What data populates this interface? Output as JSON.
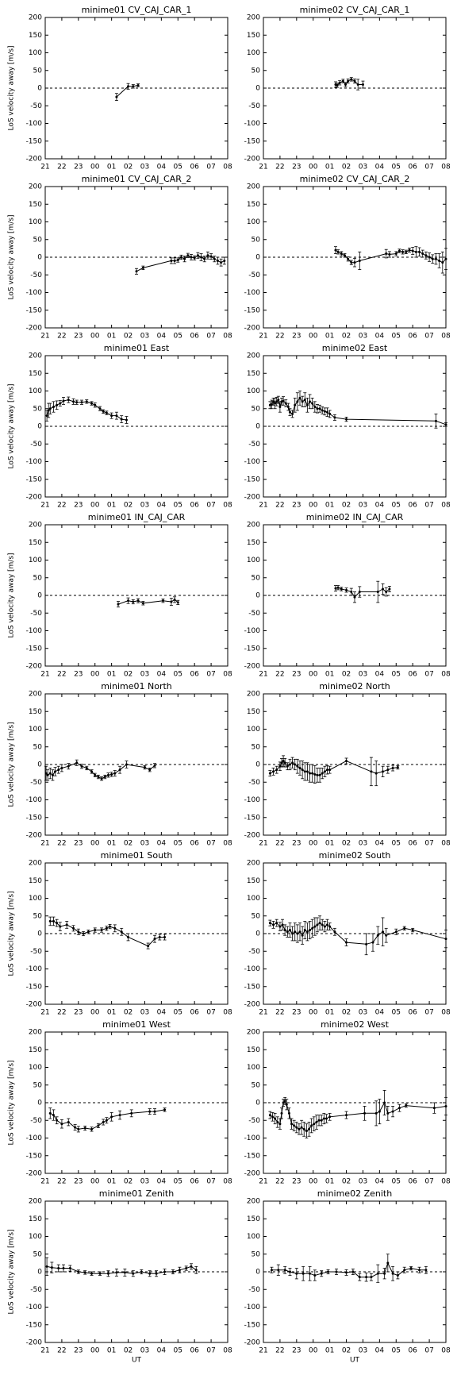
{
  "chart_data": [
    {
      "type": "line",
      "title": "minime01 CV_CAJ_CAR_1",
      "ylabel": "LoS velocity away [m/s]",
      "x": [
        4.3,
        5.0,
        5.3,
        5.6
      ],
      "values": [
        -25,
        5,
        5,
        8
      ],
      "errors": [
        10,
        8,
        5,
        4
      ]
    },
    {
      "type": "line",
      "title": "minime02 CV_CAJ_CAR_1",
      "x": [
        4.35,
        4.45,
        4.6,
        4.8,
        4.95,
        5.1,
        5.3,
        5.5,
        5.7,
        6.0
      ],
      "values": [
        10,
        8,
        15,
        20,
        10,
        20,
        25,
        20,
        10,
        10
      ],
      "errors": [
        8,
        6,
        6,
        5,
        6,
        6,
        5,
        6,
        15,
        10
      ]
    },
    {
      "type": "line",
      "title": "minime01 CV_CAJ_CAR_2",
      "ylabel": "LoS velocity away [m/s]",
      "x": [
        5.5,
        5.9,
        7.6,
        7.8,
        8.0,
        8.2,
        8.4,
        8.6,
        8.8,
        9.0,
        9.2,
        9.4,
        9.6,
        9.8,
        10.0,
        10.2,
        10.4,
        10.6,
        10.8
      ],
      "values": [
        -40,
        -30,
        -10,
        -10,
        -8,
        0,
        -5,
        5,
        0,
        -2,
        5,
        0,
        -5,
        5,
        2,
        -5,
        -10,
        -15,
        -10
      ],
      "errors": [
        8,
        5,
        8,
        8,
        6,
        6,
        8,
        6,
        8,
        6,
        8,
        10,
        8,
        10,
        8,
        8,
        10,
        10,
        10
      ]
    },
    {
      "type": "line",
      "title": "minime02 CV_CAJ_CAR_2",
      "x": [
        4.35,
        4.5,
        4.7,
        4.9,
        5.1,
        5.3,
        5.5,
        5.8,
        7.4,
        7.6,
        8.0,
        8.2,
        8.4,
        8.6,
        8.8,
        9.0,
        9.2,
        9.4,
        9.6,
        9.8,
        10.0,
        10.2,
        10.4,
        10.6,
        10.8,
        11.0
      ],
      "values": [
        20,
        15,
        10,
        5,
        -5,
        -15,
        -15,
        -10,
        10,
        8,
        10,
        18,
        15,
        15,
        20,
        18,
        15,
        15,
        10,
        5,
        0,
        -5,
        -5,
        -10,
        -15,
        -5
      ],
      "errors": [
        10,
        6,
        6,
        5,
        6,
        6,
        12,
        25,
        12,
        8,
        6,
        5,
        6,
        5,
        6,
        10,
        15,
        12,
        10,
        10,
        12,
        12,
        15,
        20,
        30,
        30
      ]
    },
    {
      "type": "line",
      "title": "minime01 East",
      "ylabel": "LoS velocity away [m/s]",
      "x": [
        0.1,
        0.2,
        0.3,
        0.5,
        0.7,
        0.9,
        1.1,
        1.4,
        1.7,
        1.9,
        2.2,
        2.5,
        2.8,
        3.0,
        3.3,
        3.5,
        3.7,
        4.0,
        4.3,
        4.6,
        4.9
      ],
      "values": [
        30,
        45,
        50,
        55,
        60,
        65,
        72,
        75,
        70,
        68,
        68,
        70,
        65,
        60,
        50,
        42,
        38,
        30,
        30,
        20,
        18
      ],
      "errors": [
        15,
        20,
        15,
        15,
        12,
        8,
        10,
        8,
        8,
        6,
        6,
        5,
        5,
        6,
        6,
        5,
        5,
        8,
        10,
        10,
        10
      ]
    },
    {
      "type": "line",
      "title": "minime02 East",
      "x": [
        0.4,
        0.5,
        0.6,
        0.7,
        0.8,
        0.9,
        1.0,
        1.1,
        1.2,
        1.35,
        1.5,
        1.6,
        1.75,
        1.9,
        2.05,
        2.2,
        2.35,
        2.5,
        2.65,
        2.8,
        2.95,
        3.1,
        3.25,
        3.4,
        3.55,
        3.7,
        3.85,
        4.0,
        4.3,
        5.0,
        10.4,
        11.0
      ],
      "values": [
        60,
        62,
        70,
        65,
        70,
        75,
        55,
        70,
        72,
        65,
        55,
        40,
        35,
        60,
        70,
        80,
        70,
        75,
        60,
        70,
        65,
        55,
        50,
        50,
        45,
        42,
        40,
        35,
        25,
        20,
        15,
        5
      ],
      "errors": [
        10,
        12,
        10,
        15,
        12,
        10,
        15,
        10,
        12,
        10,
        10,
        10,
        10,
        20,
        25,
        20,
        15,
        20,
        20,
        20,
        15,
        15,
        12,
        10,
        10,
        10,
        12,
        10,
        8,
        6,
        20,
        5
      ]
    },
    {
      "type": "line",
      "title": "minime01 IN_CAJ_CAR",
      "ylabel": "LoS velocity away [m/s]",
      "x": [
        4.4,
        5.0,
        5.3,
        5.6,
        5.9,
        7.1,
        7.6,
        7.8,
        8.0
      ],
      "values": [
        -25,
        -15,
        -18,
        -15,
        -22,
        -15,
        -18,
        -12,
        -20
      ],
      "errors": [
        8,
        8,
        6,
        6,
        5,
        5,
        10,
        8,
        6
      ]
    },
    {
      "type": "line",
      "title": "minime02 IN_CAJ_CAR",
      "x": [
        4.35,
        4.5,
        4.7,
        5.0,
        5.3,
        5.5,
        5.8,
        6.9,
        7.2,
        7.4,
        7.6
      ],
      "values": [
        20,
        22,
        18,
        15,
        10,
        -5,
        10,
        10,
        18,
        10,
        18
      ],
      "errors": [
        8,
        6,
        5,
        6,
        10,
        15,
        15,
        30,
        15,
        12,
        8
      ]
    },
    {
      "type": "line",
      "title": "minime01 North",
      "ylabel": "LoS velocity away [m/s]",
      "x": [
        0.05,
        0.15,
        0.3,
        0.45,
        0.6,
        0.8,
        1.0,
        1.4,
        1.9,
        2.2,
        2.5,
        2.8,
        3.0,
        3.2,
        3.4,
        3.6,
        3.8,
        4.0,
        4.2,
        4.5,
        4.9,
        6.0,
        6.3,
        6.6
      ],
      "values": [
        -25,
        -30,
        -25,
        -30,
        -20,
        -15,
        -10,
        -5,
        5,
        -5,
        -10,
        -20,
        -30,
        -35,
        -40,
        -35,
        -30,
        -28,
        -25,
        -15,
        0,
        -8,
        -15,
        -3
      ],
      "errors": [
        20,
        15,
        15,
        15,
        12,
        10,
        10,
        8,
        8,
        6,
        5,
        5,
        5,
        5,
        5,
        5,
        6,
        6,
        8,
        10,
        10,
        5,
        5,
        6
      ]
    },
    {
      "type": "line",
      "title": "minime02 North",
      "x": [
        0.4,
        0.6,
        0.8,
        1.0,
        1.1,
        1.2,
        1.3,
        1.45,
        1.6,
        1.75,
        1.9,
        2.05,
        2.2,
        2.35,
        2.5,
        2.65,
        2.8,
        2.95,
        3.1,
        3.25,
        3.4,
        3.55,
        3.7,
        3.85,
        4.0,
        5.0,
        6.5,
        6.8,
        7.2,
        7.5,
        7.8,
        8.1
      ],
      "values": [
        -25,
        -20,
        -15,
        -5,
        5,
        10,
        5,
        -5,
        0,
        5,
        0,
        -5,
        -10,
        -15,
        -20,
        -20,
        -25,
        -25,
        -28,
        -30,
        -30,
        -25,
        -20,
        -15,
        -15,
        10,
        -20,
        -25,
        -20,
        -15,
        -10,
        -8
      ],
      "errors": [
        8,
        10,
        10,
        12,
        12,
        15,
        12,
        10,
        15,
        15,
        15,
        20,
        20,
        25,
        25,
        25,
        25,
        25,
        25,
        20,
        20,
        15,
        15,
        12,
        10,
        8,
        40,
        35,
        15,
        10,
        8,
        5
      ]
    },
    {
      "type": "line",
      "title": "minime01 South",
      "ylabel": "LoS velocity away [m/s]",
      "x": [
        0.3,
        0.5,
        0.7,
        0.9,
        1.3,
        1.7,
        2.0,
        2.3,
        2.6,
        3.0,
        3.4,
        3.7,
        3.9,
        4.2,
        4.6,
        5.0,
        6.2,
        6.6,
        6.9,
        7.2
      ],
      "values": [
        35,
        35,
        30,
        20,
        25,
        15,
        5,
        0,
        5,
        10,
        10,
        15,
        20,
        15,
        5,
        -10,
        -35,
        -15,
        -10,
        -10
      ],
      "errors": [
        12,
        12,
        10,
        12,
        10,
        8,
        8,
        6,
        5,
        6,
        6,
        6,
        6,
        10,
        10,
        10,
        8,
        10,
        8,
        8
      ]
    },
    {
      "type": "line",
      "title": "minime02 South",
      "x": [
        0.4,
        0.6,
        0.8,
        1.0,
        1.15,
        1.3,
        1.45,
        1.6,
        1.75,
        1.9,
        2.05,
        2.2,
        2.35,
        2.5,
        2.65,
        2.8,
        2.95,
        3.1,
        3.25,
        3.4,
        3.55,
        3.7,
        3.85,
        4.0,
        4.3,
        5.0,
        6.2,
        6.6,
        6.9,
        7.2,
        7.4,
        8.0,
        8.5,
        9.0,
        11.0
      ],
      "values": [
        30,
        25,
        30,
        20,
        25,
        10,
        5,
        10,
        0,
        5,
        0,
        5,
        -5,
        10,
        5,
        10,
        15,
        20,
        25,
        30,
        25,
        20,
        25,
        20,
        5,
        -25,
        -30,
        -25,
        -5,
        5,
        -5,
        5,
        15,
        10,
        -15
      ],
      "errors": [
        8,
        10,
        10,
        12,
        15,
        15,
        15,
        20,
        20,
        25,
        25,
        25,
        25,
        25,
        25,
        25,
        25,
        25,
        20,
        20,
        15,
        15,
        15,
        10,
        10,
        10,
        30,
        25,
        25,
        40,
        20,
        8,
        5,
        5,
        25
      ]
    },
    {
      "type": "line",
      "title": "minime01 West",
      "ylabel": "LoS velocity away [m/s]",
      "x": [
        0.3,
        0.5,
        0.7,
        1.0,
        1.4,
        1.8,
        2.0,
        2.4,
        2.8,
        3.2,
        3.5,
        3.7,
        4.0,
        4.5,
        5.2,
        6.3,
        6.6,
        7.2
      ],
      "values": [
        -30,
        -35,
        -50,
        -60,
        -55,
        -70,
        -75,
        -72,
        -75,
        -65,
        -55,
        -50,
        -40,
        -35,
        -30,
        -25,
        -25,
        -20
      ],
      "errors": [
        15,
        15,
        10,
        12,
        10,
        8,
        8,
        6,
        6,
        6,
        8,
        8,
        12,
        12,
        10,
        8,
        8,
        5
      ]
    },
    {
      "type": "line",
      "title": "minime02 West",
      "x": [
        0.4,
        0.55,
        0.7,
        0.85,
        1.0,
        1.1,
        1.2,
        1.3,
        1.4,
        1.55,
        1.7,
        1.85,
        2.0,
        2.15,
        2.3,
        2.45,
        2.6,
        2.75,
        2.9,
        3.05,
        3.2,
        3.35,
        3.5,
        3.65,
        3.8,
        4.0,
        5.0,
        6.1,
        6.8,
        7.0,
        7.3,
        7.5,
        7.8,
        8.2,
        8.6,
        10.3,
        11.0
      ],
      "values": [
        -35,
        -40,
        -45,
        -55,
        -60,
        -30,
        0,
        5,
        -5,
        -30,
        -60,
        -65,
        -70,
        -75,
        -70,
        -75,
        -80,
        -75,
        -65,
        -60,
        -55,
        -50,
        -50,
        -45,
        -45,
        -40,
        -35,
        -30,
        -30,
        -25,
        0,
        -30,
        -25,
        -15,
        -8,
        -15,
        -10
      ],
      "errors": [
        10,
        12,
        15,
        15,
        15,
        15,
        10,
        10,
        15,
        15,
        15,
        15,
        15,
        15,
        20,
        20,
        20,
        20,
        20,
        20,
        20,
        15,
        15,
        15,
        12,
        10,
        10,
        20,
        35,
        35,
        35,
        20,
        15,
        10,
        5,
        15,
        25
      ]
    },
    {
      "type": "line",
      "title": "minime01 Zenith",
      "ylabel": "LoS velocity away [m/s]",
      "xlabel": "UT",
      "x": [
        0.1,
        0.4,
        0.8,
        1.1,
        1.5,
        2.0,
        2.4,
        2.8,
        3.3,
        3.8,
        4.3,
        4.8,
        5.3,
        5.8,
        6.3,
        6.7,
        7.2,
        7.7,
        8.1,
        8.5,
        8.8,
        9.1
      ],
      "values": [
        15,
        12,
        10,
        10,
        10,
        0,
        -2,
        -5,
        -5,
        -5,
        -2,
        -2,
        -5,
        0,
        -5,
        -5,
        0,
        0,
        5,
        10,
        15,
        5
      ],
      "errors": [
        25,
        15,
        10,
        10,
        8,
        5,
        5,
        5,
        5,
        8,
        10,
        10,
        8,
        6,
        8,
        8,
        8,
        6,
        8,
        6,
        8,
        10
      ]
    },
    {
      "type": "line",
      "title": "minime02 Zenith",
      "xlabel": "UT",
      "x": [
        0.5,
        0.9,
        1.3,
        1.6,
        2.0,
        2.4,
        2.8,
        3.1,
        3.5,
        3.9,
        4.4,
        5.0,
        5.4,
        5.8,
        6.2,
        6.5,
        6.9,
        7.3,
        7.5,
        7.8,
        8.1,
        8.5,
        8.9,
        9.4,
        9.8
      ],
      "values": [
        5,
        5,
        5,
        0,
        -5,
        -5,
        -5,
        -10,
        -5,
        0,
        0,
        -2,
        0,
        -15,
        -15,
        -15,
        -5,
        -5,
        25,
        -5,
        -10,
        5,
        10,
        5,
        5
      ],
      "errors": [
        8,
        15,
        10,
        10,
        15,
        20,
        20,
        15,
        8,
        6,
        8,
        8,
        8,
        10,
        12,
        10,
        25,
        15,
        25,
        20,
        10,
        8,
        5,
        8,
        10
      ]
    }
  ],
  "axes": {
    "xlim": [
      0,
      11
    ],
    "ylim": [
      -200,
      200
    ],
    "yticks": [
      -200,
      -150,
      -100,
      -50,
      0,
      50,
      100,
      150,
      200
    ],
    "hline": 0,
    "xticks": [
      {
        "value": 0,
        "label": "21"
      },
      {
        "value": 1,
        "label": "22"
      },
      {
        "value": 2,
        "label": "23"
      },
      {
        "value": 3,
        "label": "00"
      },
      {
        "value": 4,
        "label": "01"
      },
      {
        "value": 5,
        "label": "02"
      },
      {
        "value": 6,
        "label": "03"
      },
      {
        "value": 7,
        "label": "04"
      },
      {
        "value": 8,
        "label": "05"
      },
      {
        "value": 9,
        "label": "06"
      },
      {
        "value": 10,
        "label": "07"
      },
      {
        "value": 11,
        "label": "08"
      }
    ]
  }
}
